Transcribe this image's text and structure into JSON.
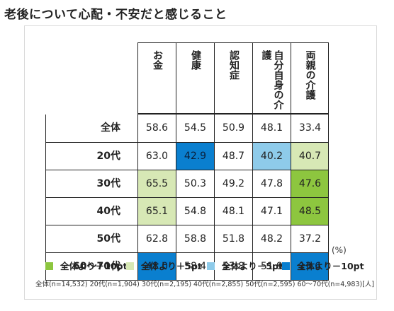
{
  "title": "老後について心配・不安だと感じること",
  "unit_note": "(%)",
  "colors": {
    "plus10": "#8dc63f",
    "plus5": "#d7e8b5",
    "minus5": "#8ecbea",
    "minus10": "#0a7fcf"
  },
  "legend": [
    {
      "key": "plus10",
      "label": "全体より＋10pt"
    },
    {
      "key": "plus5",
      "label": "全体より＋5pt"
    },
    {
      "key": "minus5",
      "label": "全体より－5pt"
    },
    {
      "key": "minus10",
      "label": "全体より－10pt"
    }
  ],
  "sample_note": "全体(n=14,532) 20代(n=1,904) 30代(n=2,195) 40代(n=2,855) 50代(n=2,595) 60～70代(n=4,983)[人]",
  "chart_data": {
    "type": "table",
    "title": "老後について心配・不安だと感じること",
    "columns": [
      "お金",
      "健康",
      "認知症",
      "自分自身の介護",
      "両親の介護"
    ],
    "rows": [
      {
        "label": "全体",
        "values": [
          58.6,
          54.5,
          50.9,
          48.1,
          33.4
        ],
        "highlight": [
          "",
          "",
          "",
          "",
          ""
        ]
      },
      {
        "label": "20代",
        "values": [
          63.0,
          42.9,
          48.7,
          40.2,
          40.7
        ],
        "highlight": [
          "",
          "minus10",
          "",
          "minus5",
          "plus5"
        ]
      },
      {
        "label": "30代",
        "values": [
          65.5,
          50.3,
          49.2,
          47.8,
          47.6
        ],
        "highlight": [
          "plus5",
          "",
          "",
          "",
          "plus10"
        ]
      },
      {
        "label": "40代",
        "values": [
          65.1,
          54.8,
          48.1,
          47.1,
          48.5
        ],
        "highlight": [
          "plus5",
          "",
          "",
          "",
          "plus10"
        ]
      },
      {
        "label": "50代",
        "values": [
          62.8,
          58.8,
          51.8,
          48.2,
          37.2
        ],
        "highlight": [
          "",
          "",
          "",
          "",
          ""
        ]
      },
      {
        "label": "60～70代",
        "values": [
          48.0,
          58.4,
          53.8,
          51.9,
          13.6
        ],
        "highlight": [
          "minus10",
          "",
          "",
          "",
          "minus10"
        ]
      }
    ]
  }
}
